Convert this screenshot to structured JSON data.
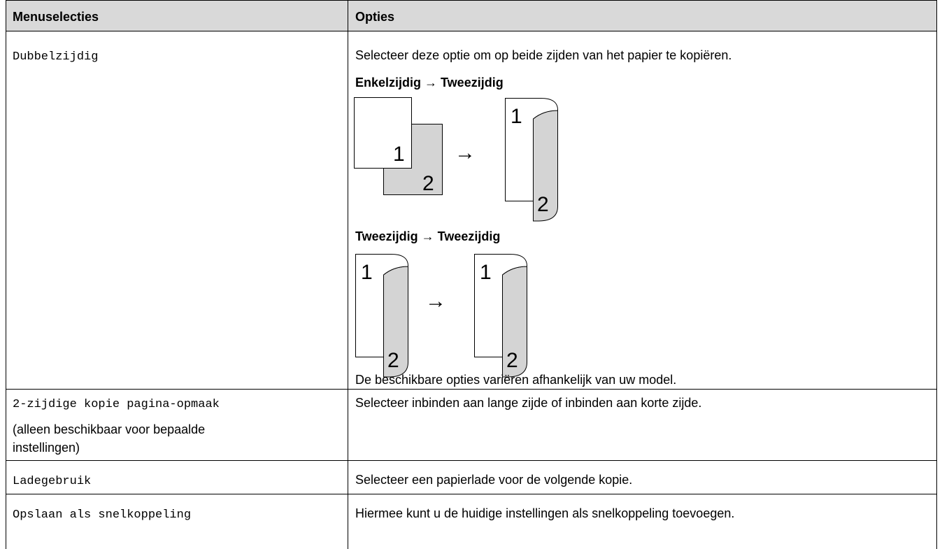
{
  "table": {
    "header": [
      "Menuselecties",
      "Opties"
    ],
    "rows": [
      {
        "menu": "Dubbelzijdig",
        "option": "Selecteer deze optie om op beide zijden van het papier te kopiëren.",
        "diagrams": [
          {
            "title": "Enkelzijdig → Tweezijdig",
            "from": [
              "1",
              "2"
            ],
            "arrow": "→",
            "to": [
              "1",
              "2"
            ]
          },
          {
            "title": "Tweezijdig → Tweezijdig",
            "from": [
              "1",
              "2"
            ],
            "arrow": "→",
            "to": [
              "1",
              "2"
            ]
          }
        ],
        "note": "De beschikbare opties variëren afhankelijk van uw model."
      },
      {
        "menu": "2-zijdige kopie pagina-opmaak",
        "menu_note": [
          "(alleen beschikbaar voor bepaalde",
          "instellingen)"
        ],
        "option": "Selecteer inbinden aan lange zijde of inbinden aan korte zijde."
      },
      {
        "menu": "Ladegebruik",
        "option": "Selecteer een papierlade voor de volgende kopie."
      },
      {
        "menu": "Opslaan als snelkoppeling",
        "option": "Hiermee kunt u de huidige instellingen als snelkoppeling toevoegen."
      }
    ]
  }
}
